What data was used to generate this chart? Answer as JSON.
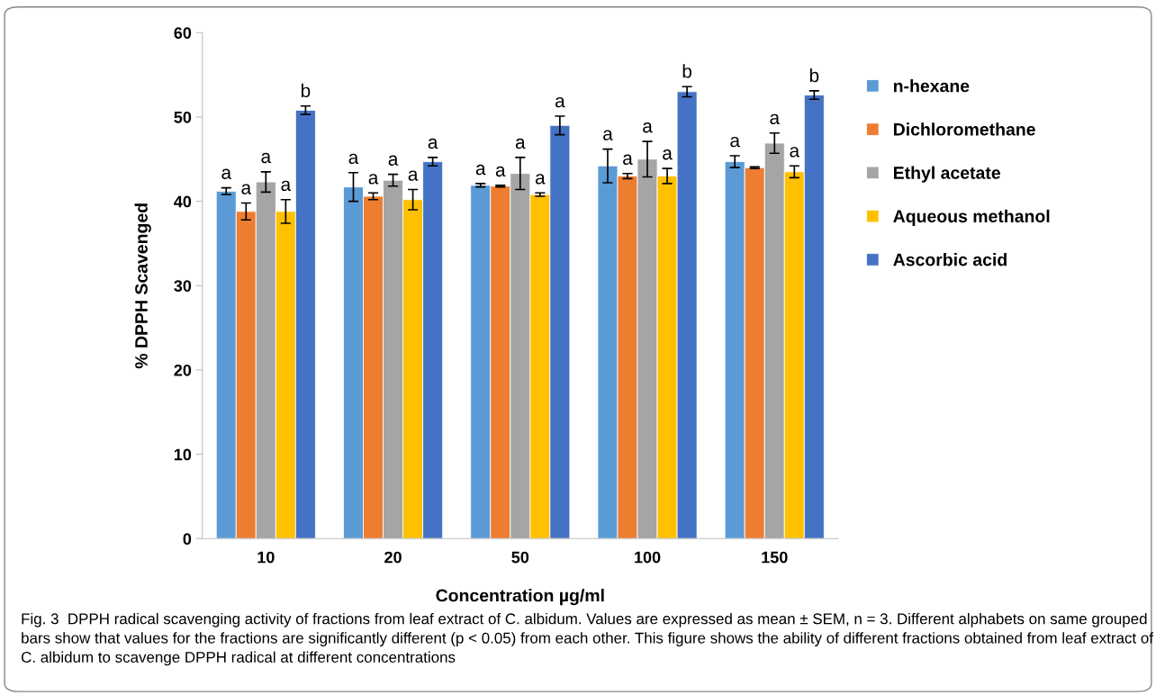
{
  "chart_data": {
    "type": "bar",
    "xlabel": "Concentration µg/ml",
    "ylabel": "% DPPH Scavenged",
    "categories": [
      "10",
      "20",
      "50",
      "100",
      "150"
    ],
    "series": [
      {
        "name": "n-hexane",
        "color": "#5b9bd5",
        "values": [
          41.2,
          41.7,
          41.9,
          44.2,
          44.7
        ],
        "errors": [
          0.4,
          1.7,
          0.2,
          2.0,
          0.7
        ],
        "value_labels": [
          "a",
          "a",
          "a",
          "a",
          "a"
        ]
      },
      {
        "name": "Dichloromethane",
        "color": "#ed7d31",
        "values": [
          38.8,
          40.6,
          41.8,
          43.0,
          44.0
        ],
        "errors": [
          1.0,
          0.4,
          0.1,
          0.3,
          0.1
        ],
        "value_labels": [
          "a",
          "a",
          "a",
          "a",
          null
        ]
      },
      {
        "name": "Ethyl acetate",
        "color": "#a5a5a5",
        "values": [
          42.3,
          42.5,
          43.3,
          45.0,
          46.9
        ],
        "errors": [
          1.2,
          0.7,
          1.9,
          2.1,
          1.2
        ],
        "value_labels": [
          "a",
          "a",
          "a",
          "a",
          "a"
        ]
      },
      {
        "name": "Aqueous methanol",
        "color": "#ffc000",
        "values": [
          38.8,
          40.2,
          40.8,
          43.0,
          43.5
        ],
        "errors": [
          1.4,
          1.2,
          0.2,
          0.9,
          0.7
        ],
        "value_labels": [
          "a",
          "a",
          "a",
          "a",
          "a"
        ]
      },
      {
        "name": "Ascorbic acid",
        "color": "#4472c4",
        "values": [
          50.8,
          44.7,
          49.0,
          53.0,
          52.6
        ],
        "errors": [
          0.5,
          0.5,
          1.1,
          0.6,
          0.5
        ],
        "value_labels": [
          "b",
          "a",
          "a",
          "b",
          "b"
        ]
      }
    ],
    "ylim": [
      0,
      60
    ],
    "yticks": [
      0,
      10,
      20,
      30,
      40,
      50,
      60
    ],
    "grid": false,
    "legend": "right",
    "annotations": [
      "Fig. 3  DPPH radical scavenging activity of fractions from leaf extract of C. albidum. Values are expressed as mean ± SEM, n = 3. Different alphabets on same grouped bars show that values for the fractions are significantly different (p < 0.05) from each other. This figure shows the ability of different fractions obtained from leaf extract of C. albidum to scavenge DPPH radical at different concentrations"
    ]
  }
}
